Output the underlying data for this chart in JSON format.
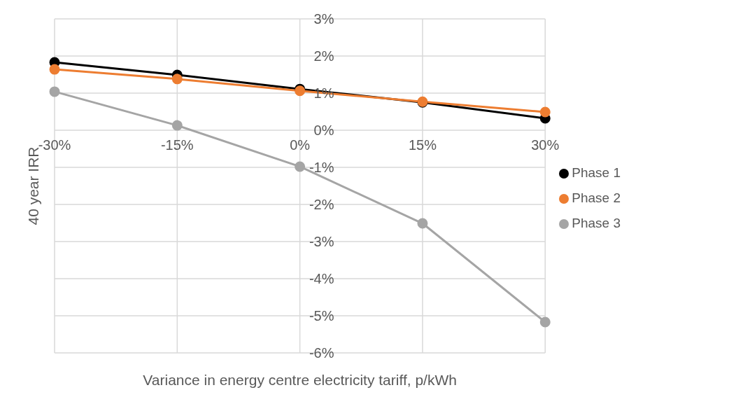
{
  "chart_data": {
    "type": "line",
    "xlabel": "Variance in energy centre electricity tariff, p/kWh",
    "ylabel": "40 year IRR",
    "categories": [
      "-30%",
      "-15%",
      "0%",
      "15%",
      "30%"
    ],
    "series": [
      {
        "name": "Phase 1",
        "color": "#000000",
        "values": [
          1.83,
          1.49,
          1.11,
          0.75,
          0.32
        ]
      },
      {
        "name": "Phase 2",
        "color": "#ed7d31",
        "values": [
          1.64,
          1.38,
          1.06,
          0.77,
          0.49
        ]
      },
      {
        "name": "Phase 3",
        "color": "#a5a5a5",
        "values": [
          1.04,
          0.13,
          -0.98,
          -2.51,
          -5.17
        ]
      }
    ],
    "ylim": [
      -6,
      3
    ],
    "yticks": [
      {
        "value": -6,
        "label": "-6%"
      },
      {
        "value": -5,
        "label": "-5%"
      },
      {
        "value": -4,
        "label": "-4%"
      },
      {
        "value": -3,
        "label": "-3%"
      },
      {
        "value": -2,
        "label": "-2%"
      },
      {
        "value": -1,
        "label": "-1%"
      },
      {
        "value": 0,
        "label": "0%"
      },
      {
        "value": 1,
        "label": "1%"
      },
      {
        "value": 2,
        "label": "2%"
      },
      {
        "value": 3,
        "label": "3%"
      }
    ],
    "grid": true,
    "legend": "right",
    "marker": "circle",
    "line_style": "solid"
  }
}
